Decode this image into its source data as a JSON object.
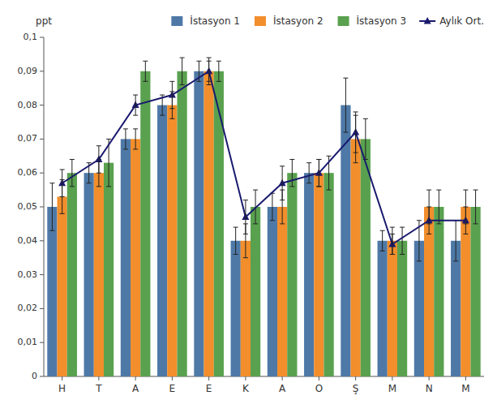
{
  "chart_data": {
    "type": "bar",
    "y_label": "ppt",
    "categories": [
      "H",
      "T",
      "A",
      "E",
      "E",
      "K",
      "A",
      "O",
      "Ş",
      "M",
      "N",
      "M"
    ],
    "series": [
      {
        "name": "İstasyon 1",
        "type": "bar",
        "color": "#4e79a7",
        "values": [
          0.05,
          0.06,
          0.07,
          0.08,
          0.09,
          0.04,
          0.05,
          0.06,
          0.08,
          0.04,
          0.04,
          0.04
        ],
        "errors": [
          0.007,
          0.003,
          0.003,
          0.003,
          0.003,
          0.004,
          0.004,
          0.003,
          0.008,
          0.003,
          0.006,
          0.006
        ]
      },
      {
        "name": "İstasyon 2",
        "type": "bar",
        "color": "#f28e2b",
        "values": [
          0.053,
          0.06,
          0.07,
          0.08,
          0.09,
          0.04,
          0.05,
          0.06,
          0.07,
          0.04,
          0.05,
          0.05
        ],
        "errors": [
          0.005,
          0.004,
          0.003,
          0.004,
          0.004,
          0.005,
          0.005,
          0.004,
          0.007,
          0.004,
          0.005,
          0.005
        ]
      },
      {
        "name": "İstasyon 3",
        "type": "bar",
        "color": "#59a14f",
        "values": [
          0.06,
          0.063,
          0.09,
          0.09,
          0.09,
          0.05,
          0.06,
          0.06,
          0.07,
          0.04,
          0.05,
          0.05
        ],
        "errors": [
          0.004,
          0.007,
          0.003,
          0.004,
          0.003,
          0.005,
          0.004,
          0.005,
          0.006,
          0.004,
          0.005,
          0.005
        ]
      },
      {
        "name": "Aylık Ort.",
        "type": "line",
        "color": "#1a1a6e",
        "marker": "triangle",
        "values": [
          0.057,
          0.064,
          0.08,
          0.083,
          0.09,
          0.047,
          0.057,
          0.06,
          0.072,
          0.039,
          0.046,
          0.046
        ],
        "errors": [
          0.004,
          0.004,
          0.003,
          0.004,
          0.003,
          0.005,
          0.005,
          0.004,
          0.006,
          0.003,
          0.004,
          0.004
        ]
      }
    ],
    "ylim": [
      0,
      0.1
    ],
    "yticks": [
      0,
      {
        "value": 0.01,
        "label": "0,01"
      },
      {
        "value": 0.02,
        "label": "0,02"
      },
      {
        "value": 0.03,
        "label": "0,03"
      },
      {
        "value": 0.04,
        "label": "0,04"
      },
      {
        "value": 0.05,
        "label": "0,05"
      },
      {
        "value": 0.06,
        "label": "0,06"
      },
      {
        "value": 0.07,
        "label": "0,07"
      },
      {
        "value": 0.08,
        "label": "0,08"
      },
      {
        "value": 0.09,
        "label": "0,09"
      },
      {
        "value": 0.1,
        "label": "0,1"
      }
    ],
    "grid": false,
    "legend": "upper right"
  }
}
